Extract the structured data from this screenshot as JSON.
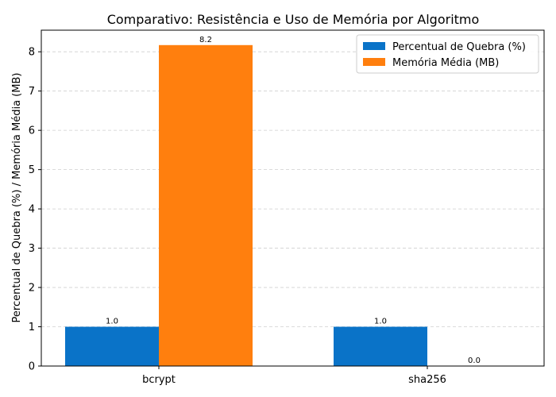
{
  "chart_data": {
    "type": "bar",
    "title": "Comparativo: Resistência e Uso de Memória por Algoritmo",
    "xlabel": "",
    "ylabel": "Percentual de Quebra (%)  /  Memória Média (MB)",
    "categories": [
      "bcrypt",
      "sha256"
    ],
    "series": [
      {
        "name": "Percentual de Quebra (%)",
        "values": [
          1.0,
          1.0
        ],
        "labels": [
          "1.0",
          "1.0"
        ],
        "color": "#0a73c8"
      },
      {
        "name": "Memória Média (MB)",
        "values": [
          8.17,
          0.0
        ],
        "labels": [
          "8.2",
          "0.0"
        ],
        "color": "#ff7f0e"
      }
    ],
    "ylim": [
      0,
      8.55
    ],
    "yticks": [
      0,
      1,
      2,
      3,
      4,
      5,
      6,
      7,
      8
    ],
    "grid": "horizontal dashed",
    "legend_position": "top-right"
  }
}
